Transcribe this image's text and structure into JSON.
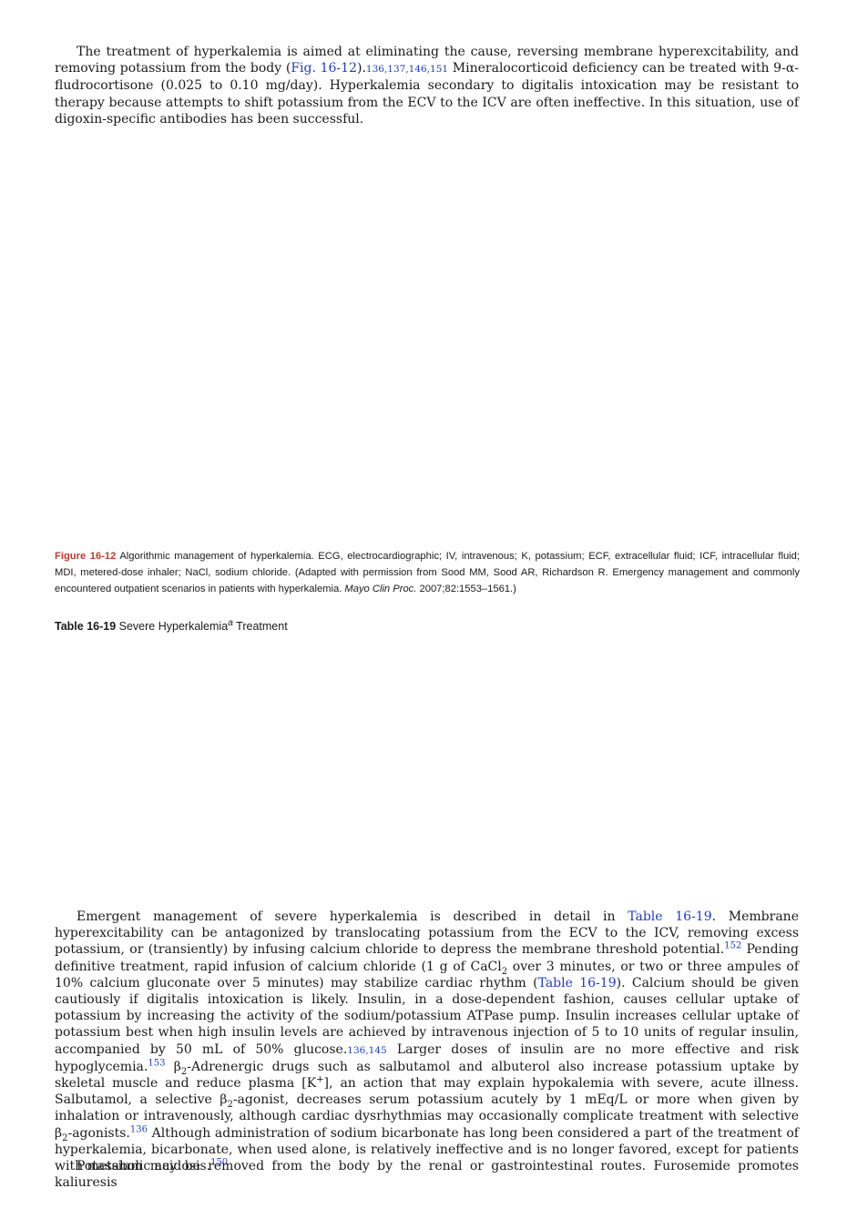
{
  "para1": {
    "t1": "The treatment of hyperkalemia is aimed at eliminating the cause, reversing membrane hyperexcitability, and removing potassium from the body (",
    "fig_ref": "Fig. 16-12",
    "t2": ").",
    "cite": "136,137,146,151",
    "t3": " Mineralocorticoid deficiency can be treated with 9-α-fludrocortisone (0.025 to 0.10 mg/day). Hyperkalemia secondary to digitalis intoxication may be resistant to therapy because attempts to shift potassium from the ECV to the ICV are often ineffective. In this situation, use of digoxin-specific antibodies has been successful."
  },
  "figure_caption": {
    "label": "Figure 16-12",
    "text": " Algorithmic management of hyperkalemia. ECG, electrocardiographic; IV, intravenous; K, potassium; ECF, extracellular fluid; ICF, intracellular fluid; MDI, metered-dose inhaler; NaCl, sodium chloride. (Adapted with permission from Sood MM, Sood AR, Richardson R. Emergency management and commonly encountered outpatient scenarios in patients with hyperkalemia. ",
    "journal": "Mayo Clin Proc.",
    "ref": " 2007;82:1553–1561.)"
  },
  "table_title": {
    "label": "Table 16-19",
    "text1": " Severe Hyperkalemia",
    "sup": "a",
    "text2": " Treatment"
  },
  "para2": {
    "t1": "Emergent management of severe hyperkalemia is described in detail in ",
    "table_ref1": "Table 16-19",
    "t2": ". Membrane hyperexcitability can be antagonized by translocating potassium from the ECV to the ICV, removing excess potassium, or (transiently) by infusing calcium chloride to depress the membrane threshold potential.",
    "cite1": "152",
    "t3": " Pending definitive treatment, rapid infusion of calcium chloride (1 g of CaCl",
    "sub1": "2",
    "t4": " over 3 minutes, or two or three ampules of 10% calcium gluconate over 5 minutes) may stabilize cardiac rhythm (",
    "table_ref2": "Table 16-19",
    "t5": "). Calcium should be given cautiously if digitalis intoxication is likely. Insulin, in a dose-dependent fashion, causes cellular uptake of potassium by increasing the activity of the sodium/potassium ATPase pump. Insulin increases cellular uptake of potassium best when high insulin levels are achieved by intravenous injection of 5 to 10 units of regular insulin, accompanied by 50 mL of 50% glucose.",
    "cite2": "136,145",
    "t6": " Larger doses of insulin are no more effective and risk hypoglycemia.",
    "cite3": "153",
    "t7": " β",
    "sub2": "2",
    "t8": "-Adrenergic drugs such as salbutamol and albuterol also increase potassium uptake by skeletal muscle and reduce plasma [K",
    "sup_plus": "+",
    "t9": "], an action that may explain hypokalemia with severe, acute illness. Salbutamol, a selective β",
    "sub3": "2",
    "t10": "-agonist, decreases serum potassium acutely by 1 mEq/L or more when given by inhalation or intravenously, although cardiac dysrhythmias may occasionally complicate treatment with selective β",
    "sub4": "2",
    "t11": "-agonists.",
    "cite4": "136",
    "t12": " Although administration of sodium bicarbonate has long been considered a part of the treatment of hyperkalemia, bicarbonate, when used alone, is relatively ineffective and is no longer favored, except for patients with metabolic acidosis.",
    "cite5": "150"
  },
  "para3": {
    "text": "Potassium may be removed from the body by the renal or gastrointestinal routes. Furosemide promotes kaliuresis"
  }
}
